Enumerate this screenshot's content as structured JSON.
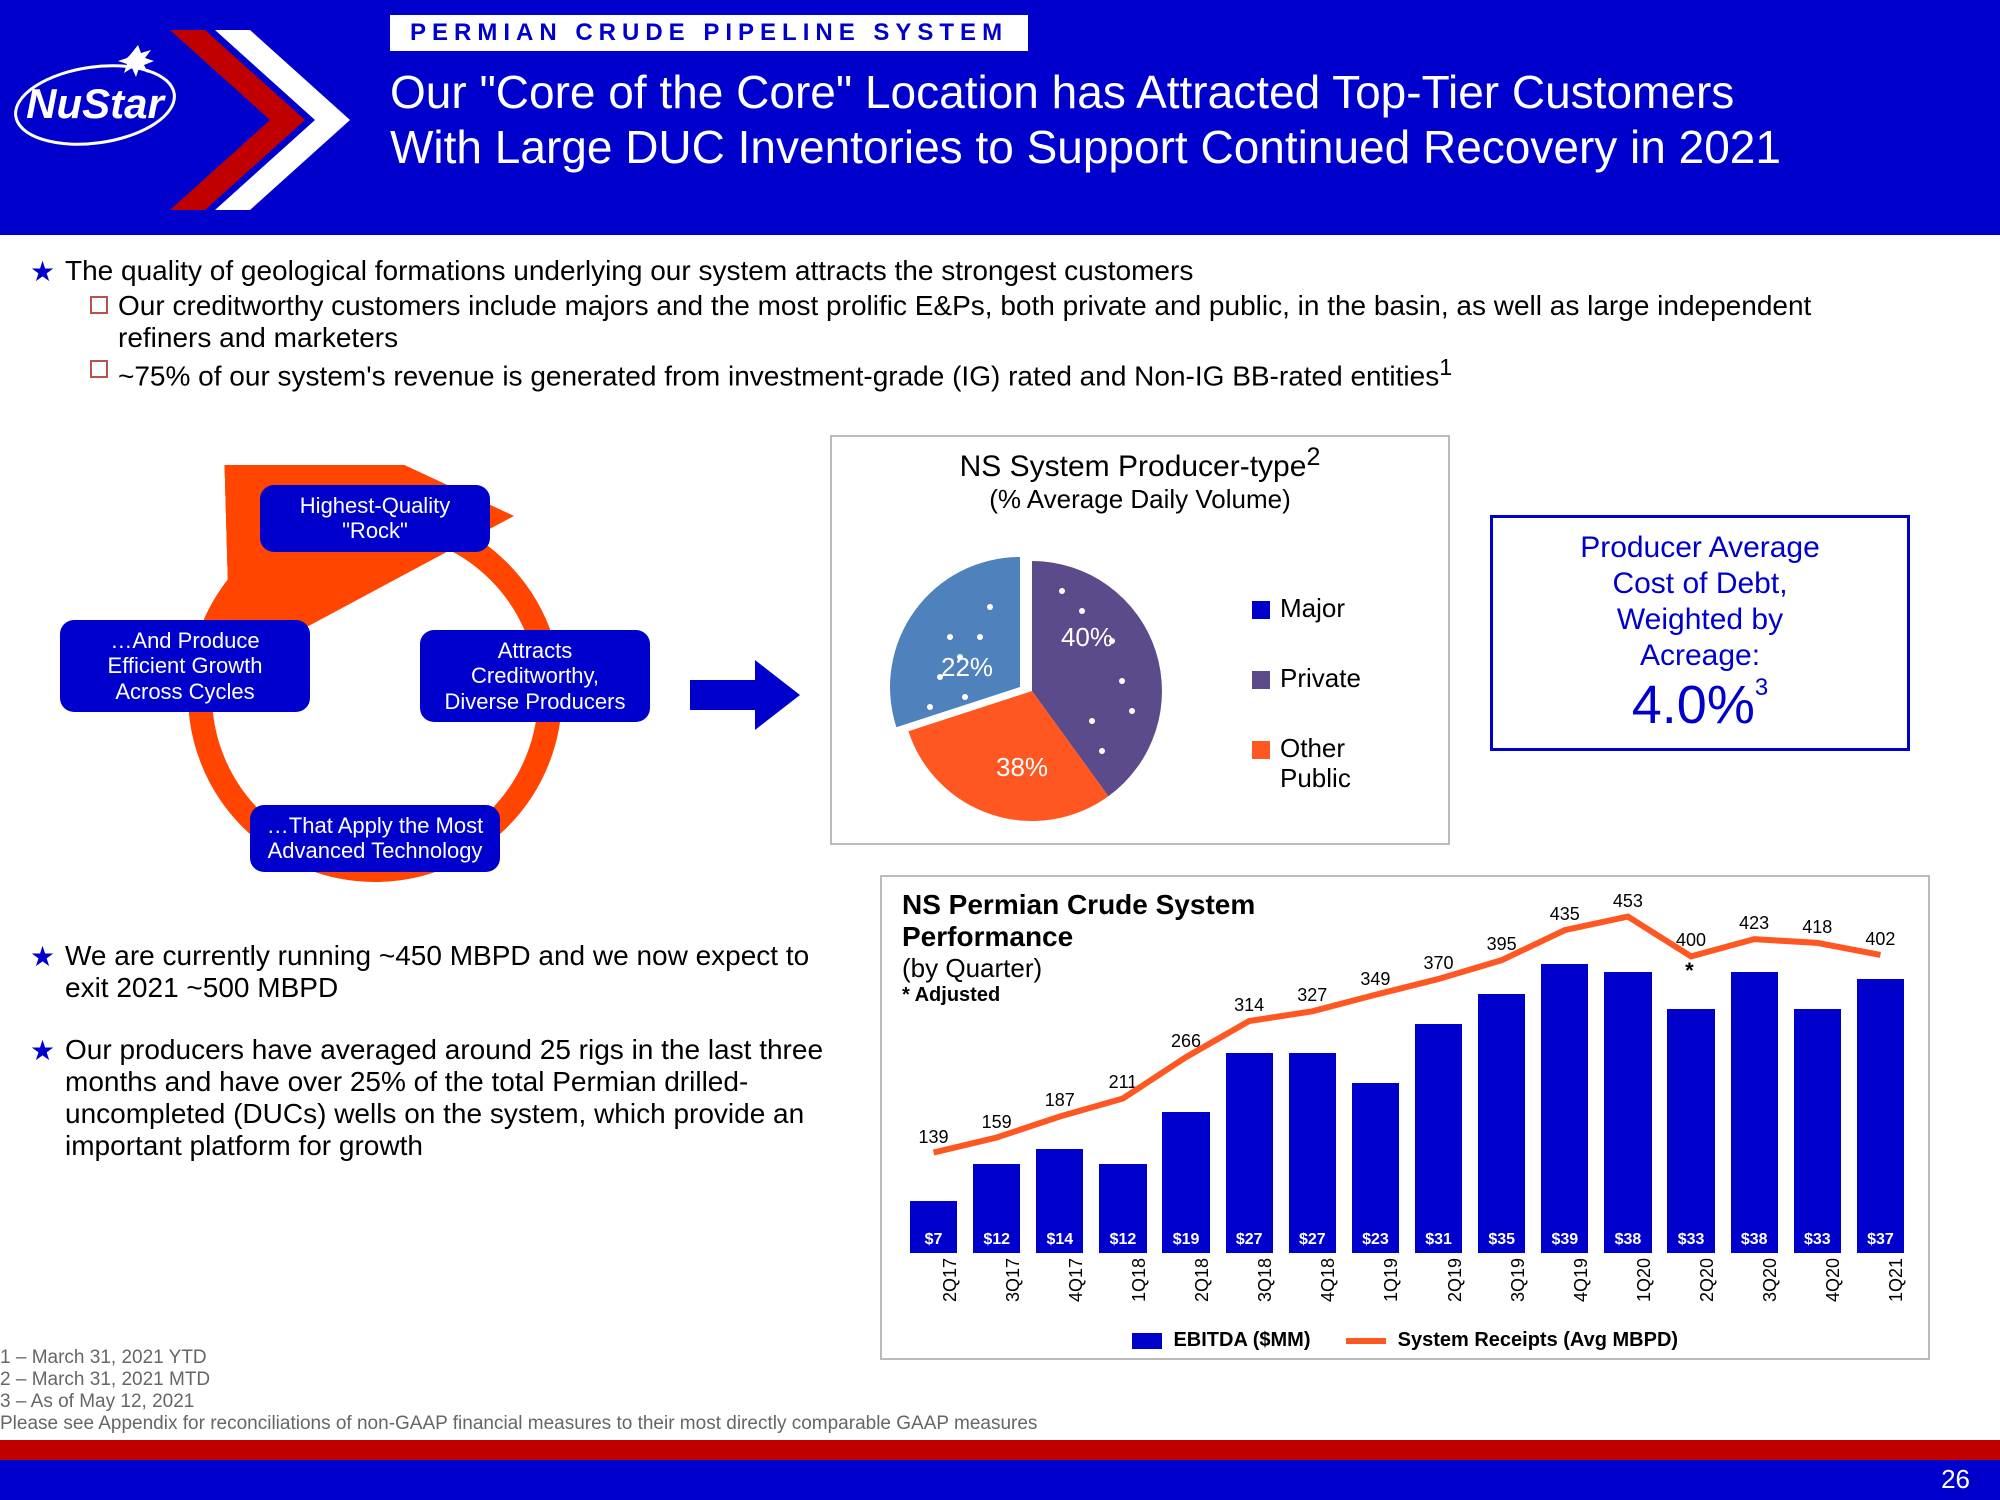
{
  "header": {
    "section_tag": "PERMIAN CRUDE PIPELINE SYSTEM",
    "title_line1": "Our \"Core of the Core\" Location has Attracted Top-Tier Customers",
    "title_line2": "With Large DUC Inventories to Support Continued Recovery in 2021",
    "logo_text": "NuStar"
  },
  "bullets": {
    "b1": "The quality of geological formations underlying our system attracts the strongest customers",
    "b1a": "Our creditworthy customers include majors and the most prolific E&Ps, both private and public, in the basin, as well as large independent refiners and marketers",
    "b1b_pre": "~75% of our system's revenue is generated from investment-grade (IG) rated and Non-IG BB-rated entities",
    "b1b_sup": "1",
    "b2": "We are currently running ~450 MBPD and we now expect to exit 2021 ~500 MBPD",
    "b3": "Our producers have averaged around 25 rigs in the last three months and have over 25% of the total Permian drilled-uncompleted (DUCs) wells on the system, which provide an important platform for growth"
  },
  "cycle": {
    "top": "Highest-Quality \"Rock\"",
    "right": "Attracts Creditworthy, Diverse Producers",
    "bottom": "…That Apply the Most Advanced Technology",
    "left": "…And Produce Efficient Growth Across Cycles",
    "ring_color": "#ff4500"
  },
  "pie": {
    "title": "NS System Producer-type",
    "title_sup": "2",
    "subtitle": "(% Average Daily Volume)",
    "slices": [
      {
        "label": "Major",
        "pct": "40%",
        "color": "#5b4b8a",
        "legend_color": "#0000cc"
      },
      {
        "label": "Private",
        "pct": "22%",
        "color": "#4f81bd",
        "legend_color": "#5b4b8a"
      },
      {
        "label": "Other Public",
        "pct": "38%",
        "color": "#ff5722",
        "legend_color": "#ff5722"
      }
    ]
  },
  "cost": {
    "title_l1": "Producer Average",
    "title_l2": "Cost of Debt,",
    "title_l3": "Weighted by",
    "title_l4": "Acreage:",
    "value": "4.0%",
    "sup": "3"
  },
  "perf": {
    "title": "NS Permian Crude System Performance",
    "subtitle": "(by Quarter)",
    "adjusted": "* Adjusted",
    "legend_bar": "EBITDA ($MM)",
    "legend_line": "System Receipts (Avg MBPD)",
    "bar_color": "#0000cc",
    "line_color": "#ff5722",
    "max_receipt": 453,
    "bars": [
      {
        "q": "2Q17",
        "e": 7,
        "r": 139
      },
      {
        "q": "3Q17",
        "e": 12,
        "r": 159
      },
      {
        "q": "4Q17",
        "e": 14,
        "r": 187
      },
      {
        "q": "1Q18",
        "e": 12,
        "r": 211
      },
      {
        "q": "2Q18",
        "e": 19,
        "r": 266
      },
      {
        "q": "3Q18",
        "e": 27,
        "r": 314
      },
      {
        "q": "4Q18",
        "e": 27,
        "r": 327
      },
      {
        "q": "1Q19",
        "e": 23,
        "r": 349
      },
      {
        "q": "2Q19",
        "e": 31,
        "r": 370
      },
      {
        "q": "3Q19",
        "e": 35,
        "r": 395
      },
      {
        "q": "4Q19",
        "e": 39,
        "r": 435
      },
      {
        "q": "1Q20",
        "e": 38,
        "r": 453
      },
      {
        "q": "2Q20",
        "e": 33,
        "r": 400,
        "star": true
      },
      {
        "q": "3Q20",
        "e": 38,
        "r": 423
      },
      {
        "q": "4Q20",
        "e": 33,
        "r": 418
      },
      {
        "q": "1Q21",
        "e": 37,
        "r": 402
      }
    ]
  },
  "footnotes": {
    "f1": "1 – March 31, 2021 YTD",
    "f2": "2 – March 31, 2021 MTD",
    "f3": "3 – As of May 12, 2021",
    "f4": "Please see Appendix for reconciliations of non-GAAP financial measures to their most directly comparable GAAP measures"
  },
  "page_num": "26"
}
